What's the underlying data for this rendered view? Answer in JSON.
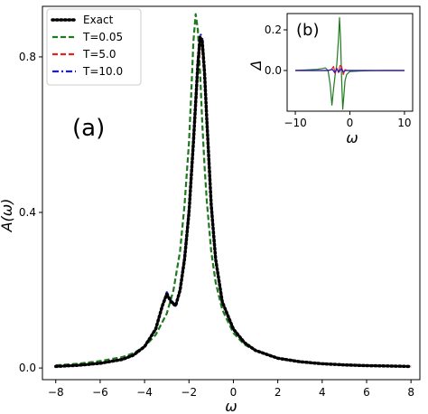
{
  "chart_data": [
    {
      "type": "line",
      "panel_label": "(a)",
      "xlabel": "ω",
      "ylabel": "A(ω)",
      "xlim": [
        -8.6,
        8.4
      ],
      "ylim": [
        -0.03,
        0.93
      ],
      "xticks": [
        -8,
        -6,
        -4,
        -2,
        0,
        2,
        4,
        6,
        8
      ],
      "xtick_labels": [
        "−8",
        "−6",
        "−4",
        "−2",
        "0",
        "2",
        "4",
        "6",
        "8"
      ],
      "yticks": [
        0.0,
        0.4,
        0.8
      ],
      "ytick_labels": [
        "0.0",
        "0.4",
        "0.8"
      ],
      "grid": false,
      "legend_position": "top-left",
      "series": [
        {
          "name": "Exact",
          "color": "#000000",
          "dash": "dotted",
          "x": [
            -8,
            -7,
            -6,
            -5,
            -4.5,
            -4,
            -3.5,
            -3.2,
            -3.0,
            -2.8,
            -2.6,
            -2.4,
            -2.2,
            -2.0,
            -1.8,
            -1.6,
            -1.5,
            -1.4,
            -1.3,
            -1.2,
            -1.0,
            -0.8,
            -0.5,
            0,
            0.5,
            1,
            2,
            3,
            4,
            5,
            6,
            7,
            8
          ],
          "y": [
            0.004,
            0.007,
            0.012,
            0.022,
            0.033,
            0.055,
            0.1,
            0.16,
            0.19,
            0.17,
            0.16,
            0.2,
            0.28,
            0.4,
            0.58,
            0.78,
            0.85,
            0.84,
            0.76,
            0.64,
            0.42,
            0.28,
            0.17,
            0.1,
            0.065,
            0.045,
            0.025,
            0.016,
            0.011,
            0.008,
            0.006,
            0.005,
            0.004
          ]
        },
        {
          "name": "T=0.05",
          "color": "#1f7a1f",
          "dash": "dashed",
          "x": [
            -8,
            -7,
            -6,
            -5,
            -4.5,
            -4,
            -3.5,
            -3.0,
            -2.7,
            -2.4,
            -2.2,
            -2.0,
            -1.9,
            -1.8,
            -1.7,
            -1.6,
            -1.5,
            -1.4,
            -1.3,
            -1.2,
            -1.0,
            -0.8,
            -0.5,
            0,
            0.5,
            1,
            2,
            3,
            4,
            5,
            6,
            7,
            8
          ],
          "y": [
            0.007,
            0.011,
            0.018,
            0.028,
            0.038,
            0.055,
            0.085,
            0.14,
            0.2,
            0.3,
            0.42,
            0.58,
            0.7,
            0.84,
            0.91,
            0.87,
            0.76,
            0.63,
            0.52,
            0.43,
            0.3,
            0.22,
            0.15,
            0.09,
            0.06,
            0.045,
            0.026,
            0.017,
            0.012,
            0.009,
            0.007,
            0.005,
            0.004
          ]
        },
        {
          "name": "T=5.0",
          "color": "#e32222",
          "dash": "dashed",
          "x": [
            -8,
            -7,
            -6,
            -5,
            -4.5,
            -4,
            -3.5,
            -3.2,
            -3.0,
            -2.8,
            -2.6,
            -2.4,
            -2.2,
            -2.0,
            -1.8,
            -1.6,
            -1.5,
            -1.4,
            -1.3,
            -1.2,
            -1.0,
            -0.8,
            -0.5,
            0,
            0.5,
            1,
            2,
            3,
            4,
            5,
            6,
            7,
            8
          ],
          "y": [
            0.004,
            0.007,
            0.012,
            0.022,
            0.033,
            0.055,
            0.1,
            0.16,
            0.19,
            0.17,
            0.16,
            0.2,
            0.28,
            0.4,
            0.57,
            0.76,
            0.83,
            0.82,
            0.75,
            0.63,
            0.42,
            0.28,
            0.17,
            0.1,
            0.065,
            0.045,
            0.025,
            0.016,
            0.011,
            0.008,
            0.006,
            0.005,
            0.004
          ]
        },
        {
          "name": "T=10.0",
          "color": "#1c1cc8",
          "dash": "dashdot",
          "x": [
            -8,
            -7,
            -6,
            -5,
            -4.5,
            -4,
            -3.5,
            -3.2,
            -3.0,
            -2.8,
            -2.6,
            -2.4,
            -2.2,
            -2.0,
            -1.8,
            -1.6,
            -1.5,
            -1.4,
            -1.3,
            -1.2,
            -1.0,
            -0.8,
            -0.5,
            0,
            0.5,
            1,
            2,
            3,
            4,
            5,
            6,
            7,
            8
          ],
          "y": [
            0.004,
            0.007,
            0.012,
            0.022,
            0.033,
            0.055,
            0.1,
            0.16,
            0.195,
            0.175,
            0.16,
            0.2,
            0.29,
            0.41,
            0.59,
            0.79,
            0.86,
            0.85,
            0.77,
            0.65,
            0.43,
            0.28,
            0.17,
            0.1,
            0.065,
            0.045,
            0.025,
            0.016,
            0.011,
            0.008,
            0.006,
            0.005,
            0.004
          ]
        }
      ]
    },
    {
      "type": "line",
      "panel_label": "(b)",
      "xlabel": "ω",
      "ylabel": "Δ",
      "xlim": [
        -11.5,
        11.5
      ],
      "ylim": [
        -0.2,
        0.28
      ],
      "xticks": [
        -10,
        0,
        10
      ],
      "xtick_labels": [
        "−10",
        "0",
        "10"
      ],
      "yticks": [
        0.0,
        0.2
      ],
      "ytick_labels": [
        "0.0",
        "0.2"
      ],
      "grid": false,
      "series": [
        {
          "color": "#1f7a1f",
          "x": [
            -10,
            -8,
            -6,
            -5,
            -4.5,
            -4,
            -3.6,
            -3.3,
            -3.0,
            -2.7,
            -2.4,
            -2.1,
            -1.9,
            -1.7,
            -1.5,
            -1.3,
            -1.1,
            -0.9,
            -0.6,
            0,
            2,
            4,
            6,
            8,
            10
          ],
          "y": [
            0.001,
            0.003,
            0.006,
            0.01,
            0.013,
            0.0,
            -0.07,
            -0.17,
            -0.09,
            -0.02,
            0.03,
            0.15,
            0.26,
            0.15,
            -0.05,
            -0.19,
            -0.12,
            -0.05,
            -0.02,
            -0.005,
            -0.002,
            -0.001,
            0.0,
            0.0,
            0.0
          ]
        },
        {
          "color": "#e32222",
          "x": [
            -10,
            -6,
            -4,
            -3.4,
            -3.0,
            -2.7,
            -2.4,
            -2.1,
            -1.8,
            -1.5,
            -1.2,
            -0.9,
            -0.5,
            0,
            4,
            10
          ],
          "y": [
            0.0,
            0.0,
            0.0,
            0.005,
            0.02,
            -0.015,
            0.012,
            -0.01,
            0.025,
            0.02,
            -0.02,
            0.005,
            0.0,
            0.0,
            0.0,
            0.0
          ]
        },
        {
          "color": "#1c1cc8",
          "x": [
            -10,
            -6,
            -4,
            -3.2,
            -2.8,
            -2.4,
            -2.0,
            -1.6,
            -1.2,
            -0.8,
            0,
            4,
            10
          ],
          "y": [
            0.0,
            0.0,
            0.0,
            0.005,
            -0.01,
            0.008,
            -0.008,
            0.01,
            -0.006,
            0.0,
            0.0,
            0.0,
            0.0
          ]
        }
      ]
    }
  ]
}
